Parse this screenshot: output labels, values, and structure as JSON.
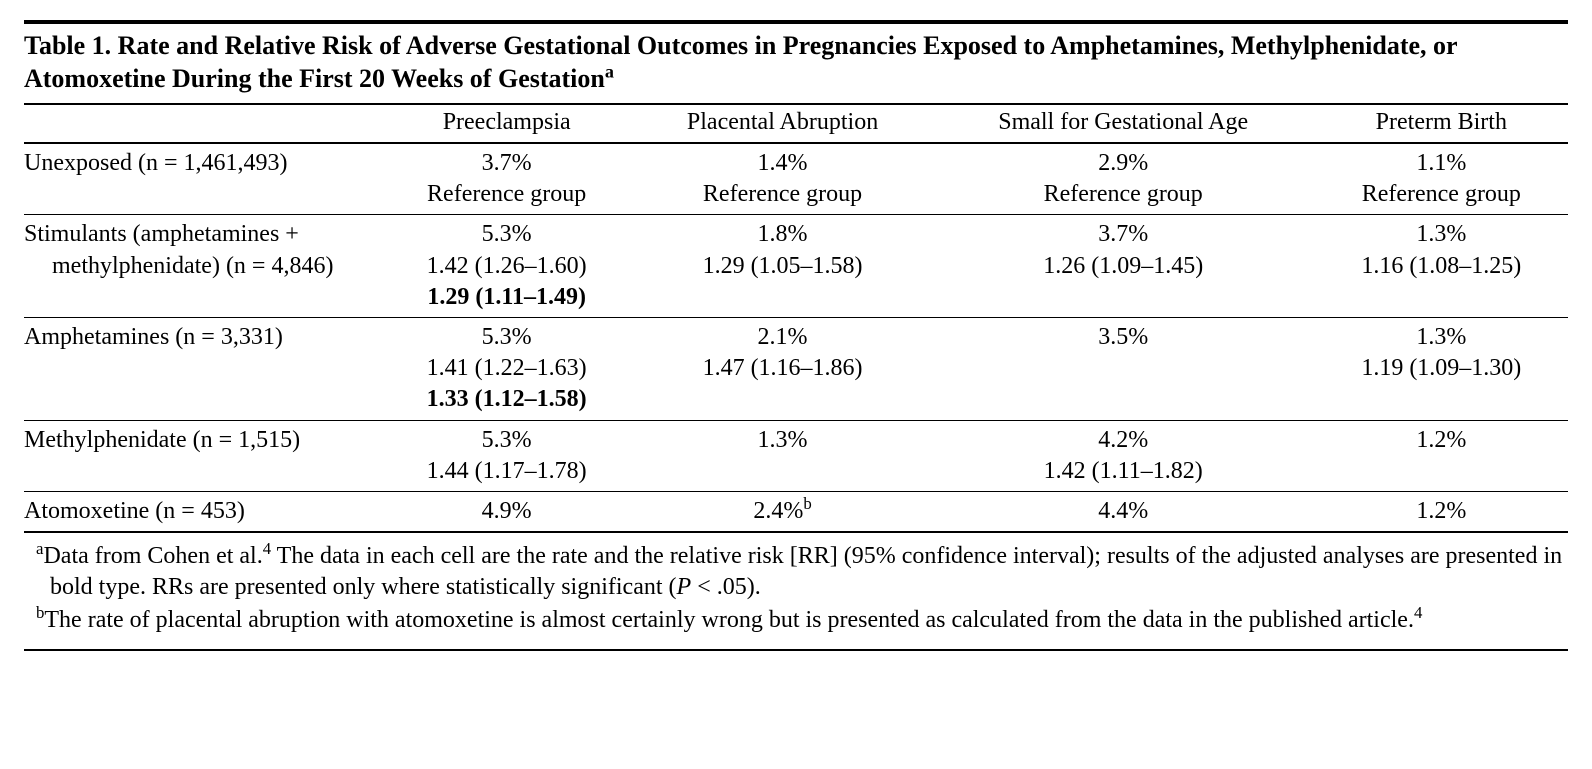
{
  "type": "table",
  "text_color": "#000000",
  "background_color": "#ffffff",
  "rule_color": "#000000",
  "font_family": "Times New Roman",
  "title_fontsize": 26,
  "body_fontsize": 24,
  "title_parts": {
    "lead": "Table 1. Rate and Relative Risk of Adverse Gestational Outcomes in Pregnancies Exposed to Amphetamines, Methylphenidate, or Atomoxetine During the First 20 Weeks of Gestation",
    "sup": "a"
  },
  "columns": [
    "",
    "Preeclampsia",
    "Placental Abruption",
    "Small for Gestational Age",
    "Preterm Birth"
  ],
  "rows": [
    {
      "label_lines": [
        "Unexposed (n = 1,461,493)"
      ],
      "cells": [
        {
          "lines": [
            "3.7%",
            "Reference group"
          ]
        },
        {
          "lines": [
            "1.4%",
            "Reference group"
          ]
        },
        {
          "lines": [
            "2.9%",
            "Reference group"
          ]
        },
        {
          "lines": [
            "1.1%",
            "Reference group"
          ]
        }
      ]
    },
    {
      "label_lines": [
        "Stimulants (amphetamines + methylphenidate) (n = 4,846)"
      ],
      "cells": [
        {
          "lines": [
            "5.3%",
            "1.42 (1.26–1.60)"
          ],
          "bold_lines": [
            "1.29 (1.11–1.49)"
          ]
        },
        {
          "lines": [
            "1.8%",
            "1.29 (1.05–1.58)"
          ]
        },
        {
          "lines": [
            "3.7%",
            "1.26 (1.09–1.45)"
          ]
        },
        {
          "lines": [
            "1.3%",
            "1.16 (1.08–1.25)"
          ]
        }
      ]
    },
    {
      "label_lines": [
        "Amphetamines (n = 3,331)"
      ],
      "cells": [
        {
          "lines": [
            "5.3%",
            "1.41 (1.22–1.63)"
          ],
          "bold_lines": [
            "1.33 (1.12–1.58)"
          ]
        },
        {
          "lines": [
            "2.1%",
            "1.47 (1.16–1.86)"
          ]
        },
        {
          "lines": [
            "3.5%"
          ]
        },
        {
          "lines": [
            "1.3%",
            "1.19 (1.09–1.30)"
          ]
        }
      ]
    },
    {
      "label_lines": [
        "Methylphenidate (n = 1,515)"
      ],
      "cells": [
        {
          "lines": [
            "5.3%",
            "1.44 (1.17–1.78)"
          ]
        },
        {
          "lines": [
            "1.3%"
          ]
        },
        {
          "lines": [
            "4.2%",
            "1.42 (1.11–1.82)"
          ]
        },
        {
          "lines": [
            "1.2%"
          ]
        }
      ]
    },
    {
      "label_lines": [
        "Atomoxetine (n = 453)"
      ],
      "cells": [
        {
          "lines": [
            "4.9%"
          ]
        },
        {
          "lines_html": [
            {
              "text": "2.4%",
              "sup": "b"
            }
          ]
        },
        {
          "lines": [
            "4.4%"
          ]
        },
        {
          "lines": [
            "1.2%"
          ]
        }
      ]
    }
  ],
  "footnotes": [
    {
      "sup": "a",
      "segments": [
        {
          "t": "Data from Cohen et al."
        },
        {
          "sup": "4"
        },
        {
          "t": " The data in each cell are the rate and the relative risk [RR] (95% confidence interval); results of the adjusted analyses are presented in bold type. RRs are presented only where statistically significant ("
        },
        {
          "ital": "P"
        },
        {
          "t": " < .05)."
        }
      ]
    },
    {
      "sup": "b",
      "segments": [
        {
          "t": "The rate of placental abruption with atomoxetine is almost certainly wrong but is presented as calculated from the data in the published article."
        },
        {
          "sup": "4"
        }
      ]
    }
  ]
}
